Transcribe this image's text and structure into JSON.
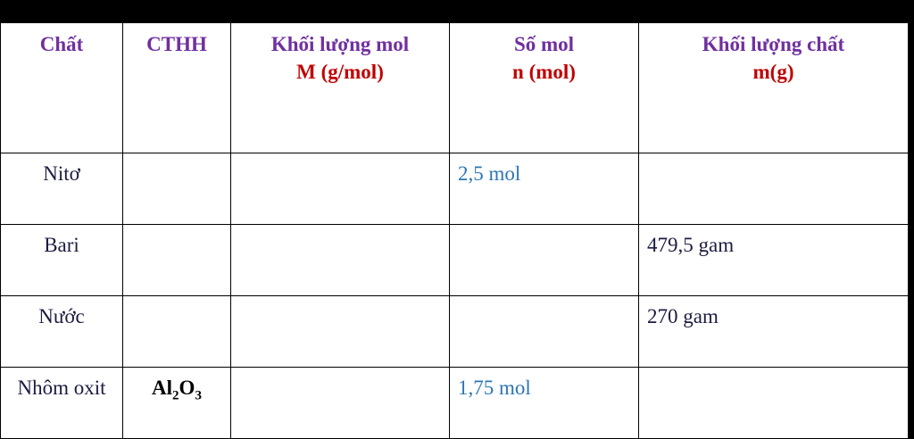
{
  "table": {
    "header": {
      "substance": "Chất",
      "formula": "CTHH",
      "molar_mass": {
        "title": "Khối lượng mol",
        "unit": "M (g/mol)"
      },
      "moles": {
        "title": "Số mol",
        "unit": "n (mol)"
      },
      "mass": {
        "title": "Khối lượng chất",
        "unit": "m(g)"
      }
    },
    "rows": [
      {
        "substance": "Nitơ",
        "moles": "2,5 mol"
      },
      {
        "substance": "Bari",
        "mass": "479,5 gam"
      },
      {
        "substance": "Nước",
        "mass": "270 gam"
      },
      {
        "substance": "Nhôm oxit",
        "formula": {
          "parts": [
            "Al",
            "2",
            "O",
            "3"
          ]
        },
        "moles": "1,75 mol"
      }
    ]
  }
}
